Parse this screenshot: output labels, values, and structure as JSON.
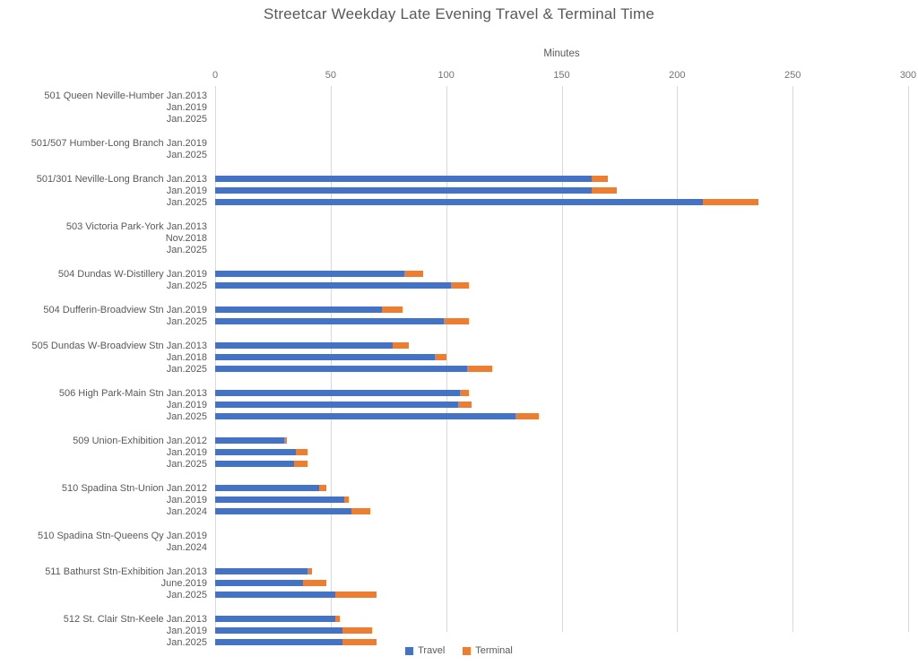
{
  "title": "Streetcar Weekday Late Evening Travel & Terminal Time",
  "axis": {
    "label": "Minutes"
  },
  "legend": {
    "travel_label": "Travel",
    "terminal_label": "Terminal"
  },
  "colors": {
    "travel": "#4472C4",
    "terminal": "#ED7D31",
    "gridline": "#d9d9d9"
  },
  "chart_data": {
    "type": "bar",
    "orientation": "horizontal-stacked",
    "title": "Streetcar Weekday Late Evening Travel & Terminal Time",
    "xlabel": "Minutes",
    "xlim": [
      0,
      300
    ],
    "x_ticks": [
      0,
      50,
      100,
      150,
      200,
      250,
      300
    ],
    "grid": true,
    "legend_position": "bottom",
    "series": [
      {
        "name": "Travel",
        "color": "#4472C4"
      },
      {
        "name": "Terminal",
        "color": "#ED7D31"
      }
    ],
    "groups": [
      {
        "route": "501 Queen Neville-Humber",
        "rows": [
          {
            "period": "Jan.2013",
            "travel": 0,
            "terminal": 0
          },
          {
            "period": "Jan.2019",
            "travel": 0,
            "terminal": 0
          },
          {
            "period": "Jan.2025",
            "travel": 0,
            "terminal": 0
          }
        ]
      },
      {
        "route": "501/507 Humber-Long Branch",
        "rows": [
          {
            "period": "Jan.2019",
            "travel": 0,
            "terminal": 0
          },
          {
            "period": "Jan.2025",
            "travel": 0,
            "terminal": 0
          }
        ]
      },
      {
        "route": "501/301 Neville-Long Branch",
        "rows": [
          {
            "period": "Jan.2013",
            "travel": 163,
            "terminal": 7
          },
          {
            "period": "Jan.2019",
            "travel": 163,
            "terminal": 11
          },
          {
            "period": "Jan.2025",
            "travel": 211,
            "terminal": 24
          }
        ]
      },
      {
        "route": "503 Victoria Park-York",
        "rows": [
          {
            "period": "Jan.2013",
            "travel": 0,
            "terminal": 0
          },
          {
            "period": "Nov.2018",
            "travel": 0,
            "terminal": 0
          },
          {
            "period": "Jan.2025",
            "travel": 0,
            "terminal": 0
          }
        ]
      },
      {
        "route": "504 Dundas W-Distillery",
        "rows": [
          {
            "period": "Jan.2019",
            "travel": 82,
            "terminal": 8
          },
          {
            "period": "Jan.2025",
            "travel": 102,
            "terminal": 8
          }
        ]
      },
      {
        "route": "504 Dufferin-Broadview Stn",
        "rows": [
          {
            "period": "Jan.2019",
            "travel": 72,
            "terminal": 9
          },
          {
            "period": "Jan.2025",
            "travel": 99,
            "terminal": 11
          }
        ]
      },
      {
        "route": "505 Dundas W-Broadview Stn",
        "rows": [
          {
            "period": "Jan.2013",
            "travel": 77,
            "terminal": 7
          },
          {
            "period": "Jan.2018",
            "travel": 95,
            "terminal": 5
          },
          {
            "period": "Jan.2025",
            "travel": 109,
            "terminal": 11
          }
        ]
      },
      {
        "route": "506 High Park-Main Stn",
        "rows": [
          {
            "period": "Jan.2013",
            "travel": 106,
            "terminal": 4
          },
          {
            "period": "Jan.2019",
            "travel": 105,
            "terminal": 6
          },
          {
            "period": "Jan.2025",
            "travel": 130,
            "terminal": 10
          }
        ]
      },
      {
        "route": "509 Union-Exhibition",
        "rows": [
          {
            "period": "Jan.2012",
            "travel": 30,
            "terminal": 1
          },
          {
            "period": "Jan.2019",
            "travel": 35,
            "terminal": 5
          },
          {
            "period": "Jan.2025",
            "travel": 34,
            "terminal": 6
          }
        ]
      },
      {
        "route": "510 Spadina Stn-Union",
        "rows": [
          {
            "period": "Jan.2012",
            "travel": 45,
            "terminal": 3
          },
          {
            "period": "Jan.2019",
            "travel": 56,
            "terminal": 2
          },
          {
            "period": "Jan.2024",
            "travel": 59,
            "terminal": 8
          }
        ]
      },
      {
        "route": "510 Spadina Stn-Queens Qy",
        "rows": [
          {
            "period": "Jan.2019",
            "travel": 0,
            "terminal": 0
          },
          {
            "period": "Jan.2024",
            "travel": 0,
            "terminal": 0
          }
        ]
      },
      {
        "route": "511 Bathurst Stn-Exhibition",
        "rows": [
          {
            "period": "Jan.2013",
            "travel": 40,
            "terminal": 2
          },
          {
            "period": "June.2019",
            "travel": 38,
            "terminal": 10
          },
          {
            "period": "Jan.2025",
            "travel": 52,
            "terminal": 18
          }
        ]
      },
      {
        "route": "512 St. Clair Stn-Keele",
        "rows": [
          {
            "period": "Jan.2013",
            "travel": 52,
            "terminal": 2
          },
          {
            "period": "Jan.2019",
            "travel": 55,
            "terminal": 13
          },
          {
            "period": "Jan.2025",
            "travel": 55,
            "terminal": 15
          }
        ]
      }
    ]
  }
}
